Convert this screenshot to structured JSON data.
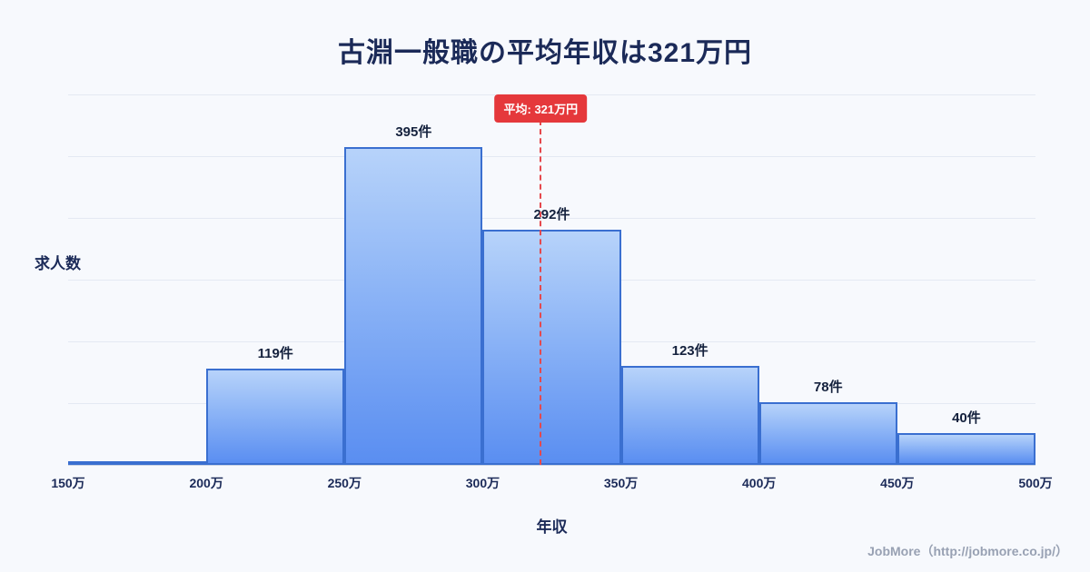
{
  "title": "古淵一般職の平均年収は321万円",
  "footer": "JobMore（http://jobmore.co.jp/）",
  "chart_data": {
    "type": "bar",
    "title": "古淵一般職の平均年収は321万円",
    "xlabel": "年収",
    "ylabel": "求人数",
    "x_ticks": [
      "150万",
      "200万",
      "250万",
      "300万",
      "350万",
      "400万",
      "450万",
      "500万"
    ],
    "values": [
      5,
      119,
      395,
      292,
      123,
      78,
      40
    ],
    "bar_labels": [
      "",
      "119件",
      "395件",
      "292件",
      "123件",
      "78件",
      "40件"
    ],
    "ylim": [
      0,
      460
    ],
    "grid": true,
    "legend": "none",
    "average_line": {
      "label": "平均: 321万円",
      "x_value": 321,
      "x_min": 150,
      "x_max": 500,
      "color": "#e5484d"
    },
    "colors": {
      "bar_gradient_top": "#b7d3fa",
      "bar_gradient_bottom": "#5a8ef1",
      "bar_border": "#3a6fd0",
      "title_text": "#1b2a58",
      "background": "#f7f9fd",
      "badge": "#e5383b"
    }
  }
}
